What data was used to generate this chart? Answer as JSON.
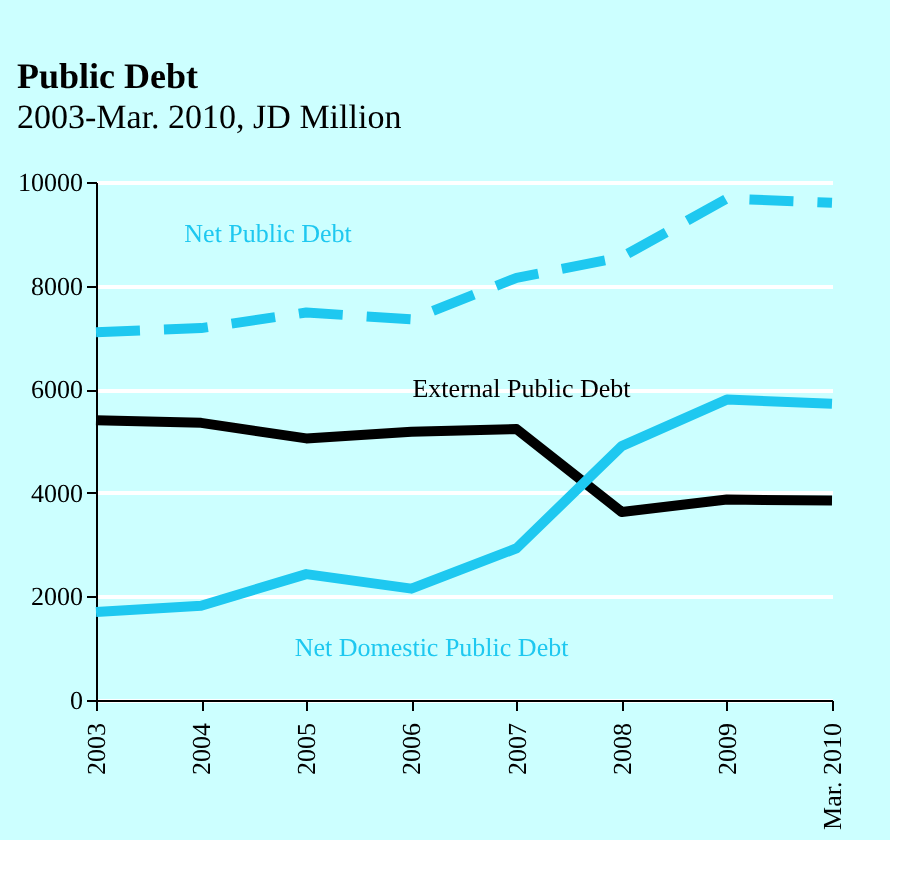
{
  "chart_data": {
    "type": "line",
    "title": "Public Debt",
    "subtitle": "2003-Mar. 2010, JD Million",
    "categories": [
      "2003",
      "2004",
      "2005",
      "2006",
      "2007",
      "2008",
      "2009",
      "Mar. 2010"
    ],
    "series": [
      {
        "name": "Net Public Debt",
        "color": "#1ec8f0",
        "line_style": "dashed",
        "values": [
          7100,
          7180,
          7480,
          7350,
          8150,
          8550,
          9680,
          9600
        ]
      },
      {
        "name": "External Public Debt",
        "color": "#000000",
        "line_style": "solid",
        "values": [
          5400,
          5350,
          5050,
          5180,
          5230,
          3630,
          3870,
          3850
        ]
      },
      {
        "name": "Net Domestic Public Debt",
        "color": "#1ec8f0",
        "line_style": "solid",
        "values": [
          1700,
          1820,
          2430,
          2150,
          2930,
          4900,
          5800,
          5720
        ]
      }
    ],
    "ylim": [
      0,
      10000
    ],
    "yticks": [
      0,
      2000,
      4000,
      6000,
      8000,
      10000
    ],
    "grid": "y",
    "marker": "none"
  }
}
